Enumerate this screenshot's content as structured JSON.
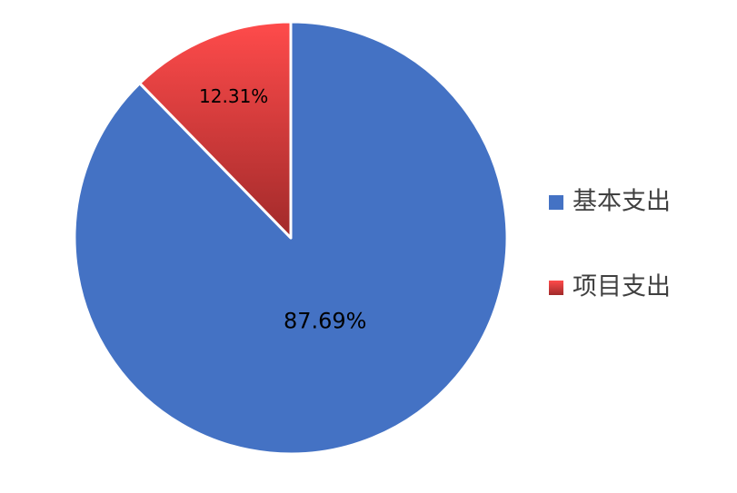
{
  "chart_data": {
    "type": "pie",
    "title": "",
    "slices": [
      {
        "label": "基本支出",
        "value": 87.69,
        "display": "87.69%",
        "color": "#4472C4"
      },
      {
        "label": "项目支出",
        "value": 12.31,
        "display": "12.31%",
        "color": "#E83A3A"
      }
    ],
    "start_angle": "12 o'clock",
    "direction": "clockwise",
    "legend_position": "right",
    "gradient": {
      "项目支出": [
        "#FF4B4B",
        "#A12A2A"
      ]
    }
  }
}
